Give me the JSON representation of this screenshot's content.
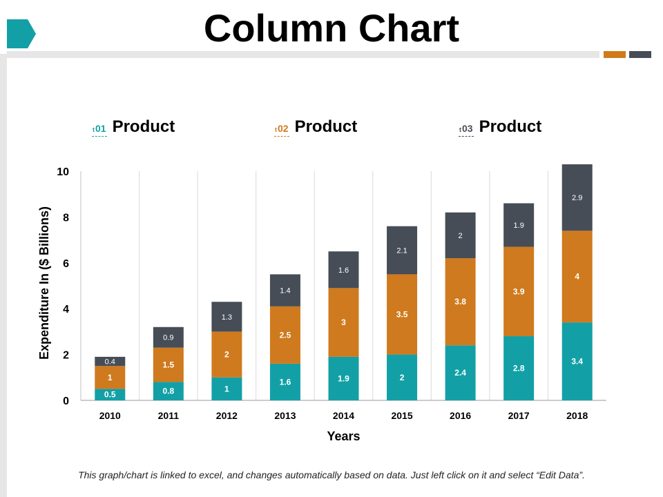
{
  "slide": {
    "title": "Column Chart",
    "note": "This graph/chart is linked to excel, and changes automatically based on data. Just left click on it and select “Edit Data”.",
    "accent_colors": [
      "#d07a1c",
      "#474d57"
    ],
    "tab_color": "#12a0a6"
  },
  "legend": [
    {
      "marker": "t",
      "number": "01",
      "label": "Product",
      "color": "#12a0a6"
    },
    {
      "marker": "t",
      "number": "02",
      "label": "Product",
      "color": "#cf7a1e"
    },
    {
      "marker": "t",
      "number": "03",
      "label": "Product",
      "color": "#474d57"
    }
  ],
  "chart_data": {
    "type": "bar",
    "stacked": true,
    "categories": [
      "2010",
      "2011",
      "2012",
      "2013",
      "2014",
      "2015",
      "2016",
      "2017",
      "2018"
    ],
    "series": [
      {
        "name": "Product 01",
        "color": "#12a0a6",
        "values": [
          0.5,
          0.8,
          1,
          1.6,
          1.9,
          2,
          2.4,
          2.8,
          3.4
        ]
      },
      {
        "name": "Product 02",
        "color": "#cf7a1e",
        "values": [
          1,
          1.5,
          2,
          2.5,
          3,
          3.5,
          3.8,
          3.9,
          4
        ]
      },
      {
        "name": "Product 03",
        "color": "#474d57",
        "values": [
          0.4,
          0.9,
          1.3,
          1.4,
          1.6,
          2.1,
          2,
          1.9,
          2.9
        ]
      }
    ],
    "xlabel": "Years",
    "ylabel": "Expenditure In ($ Billions)",
    "ylim": [
      0,
      10
    ],
    "yticks": [
      0,
      2,
      4,
      6,
      8,
      10
    ],
    "grid": "vertical",
    "legend_position": "top"
  }
}
